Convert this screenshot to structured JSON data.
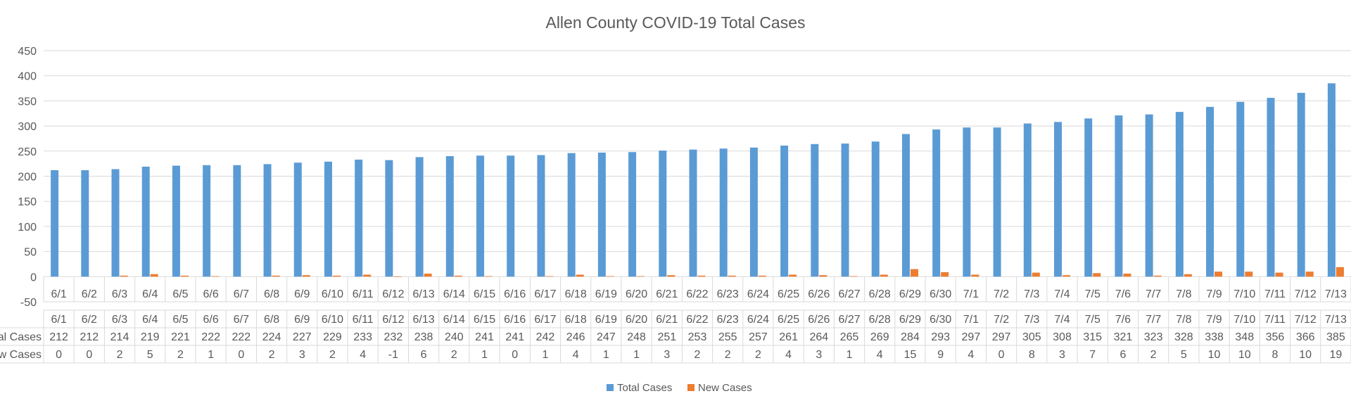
{
  "chart_data": {
    "type": "bar",
    "title": "Allen County COVID-19 Total Cases",
    "categories": [
      "6/1",
      "6/2",
      "6/3",
      "6/4",
      "6/5",
      "6/6",
      "6/7",
      "6/8",
      "6/9",
      "6/10",
      "6/11",
      "6/12",
      "6/13",
      "6/14",
      "6/15",
      "6/16",
      "6/17",
      "6/18",
      "6/19",
      "6/20",
      "6/21",
      "6/22",
      "6/23",
      "6/24",
      "6/25",
      "6/26",
      "6/27",
      "6/28",
      "6/29",
      "6/30",
      "7/1",
      "7/2",
      "7/3",
      "7/4",
      "7/5",
      "7/6",
      "7/7",
      "7/8",
      "7/9",
      "7/10",
      "7/11",
      "7/12",
      "7/13"
    ],
    "series": [
      {
        "name": "Total Cases",
        "color": "#5B9BD5",
        "values": [
          212,
          212,
          214,
          219,
          221,
          222,
          222,
          224,
          227,
          229,
          233,
          232,
          238,
          240,
          241,
          241,
          242,
          246,
          247,
          248,
          251,
          253,
          255,
          257,
          261,
          264,
          265,
          269,
          284,
          293,
          297,
          297,
          305,
          308,
          315,
          321,
          323,
          328,
          338,
          348,
          356,
          366,
          385
        ]
      },
      {
        "name": "New Cases",
        "color": "#ED7D31",
        "values": [
          0,
          0,
          2,
          5,
          2,
          1,
          0,
          2,
          3,
          2,
          4,
          -1,
          6,
          2,
          1,
          0,
          1,
          4,
          1,
          1,
          3,
          2,
          2,
          2,
          4,
          3,
          1,
          4,
          15,
          9,
          4,
          0,
          8,
          3,
          7,
          6,
          2,
          5,
          10,
          10,
          8,
          10,
          19
        ]
      }
    ],
    "ylim": [
      -50,
      450
    ],
    "y_ticks": [
      450,
      400,
      350,
      300,
      250,
      200,
      150,
      100,
      50,
      0,
      -50
    ],
    "table_row_labels": [
      "Total Cases",
      "New Cases"
    ],
    "grid": true,
    "legend_position": "bottom",
    "data_table": true
  }
}
